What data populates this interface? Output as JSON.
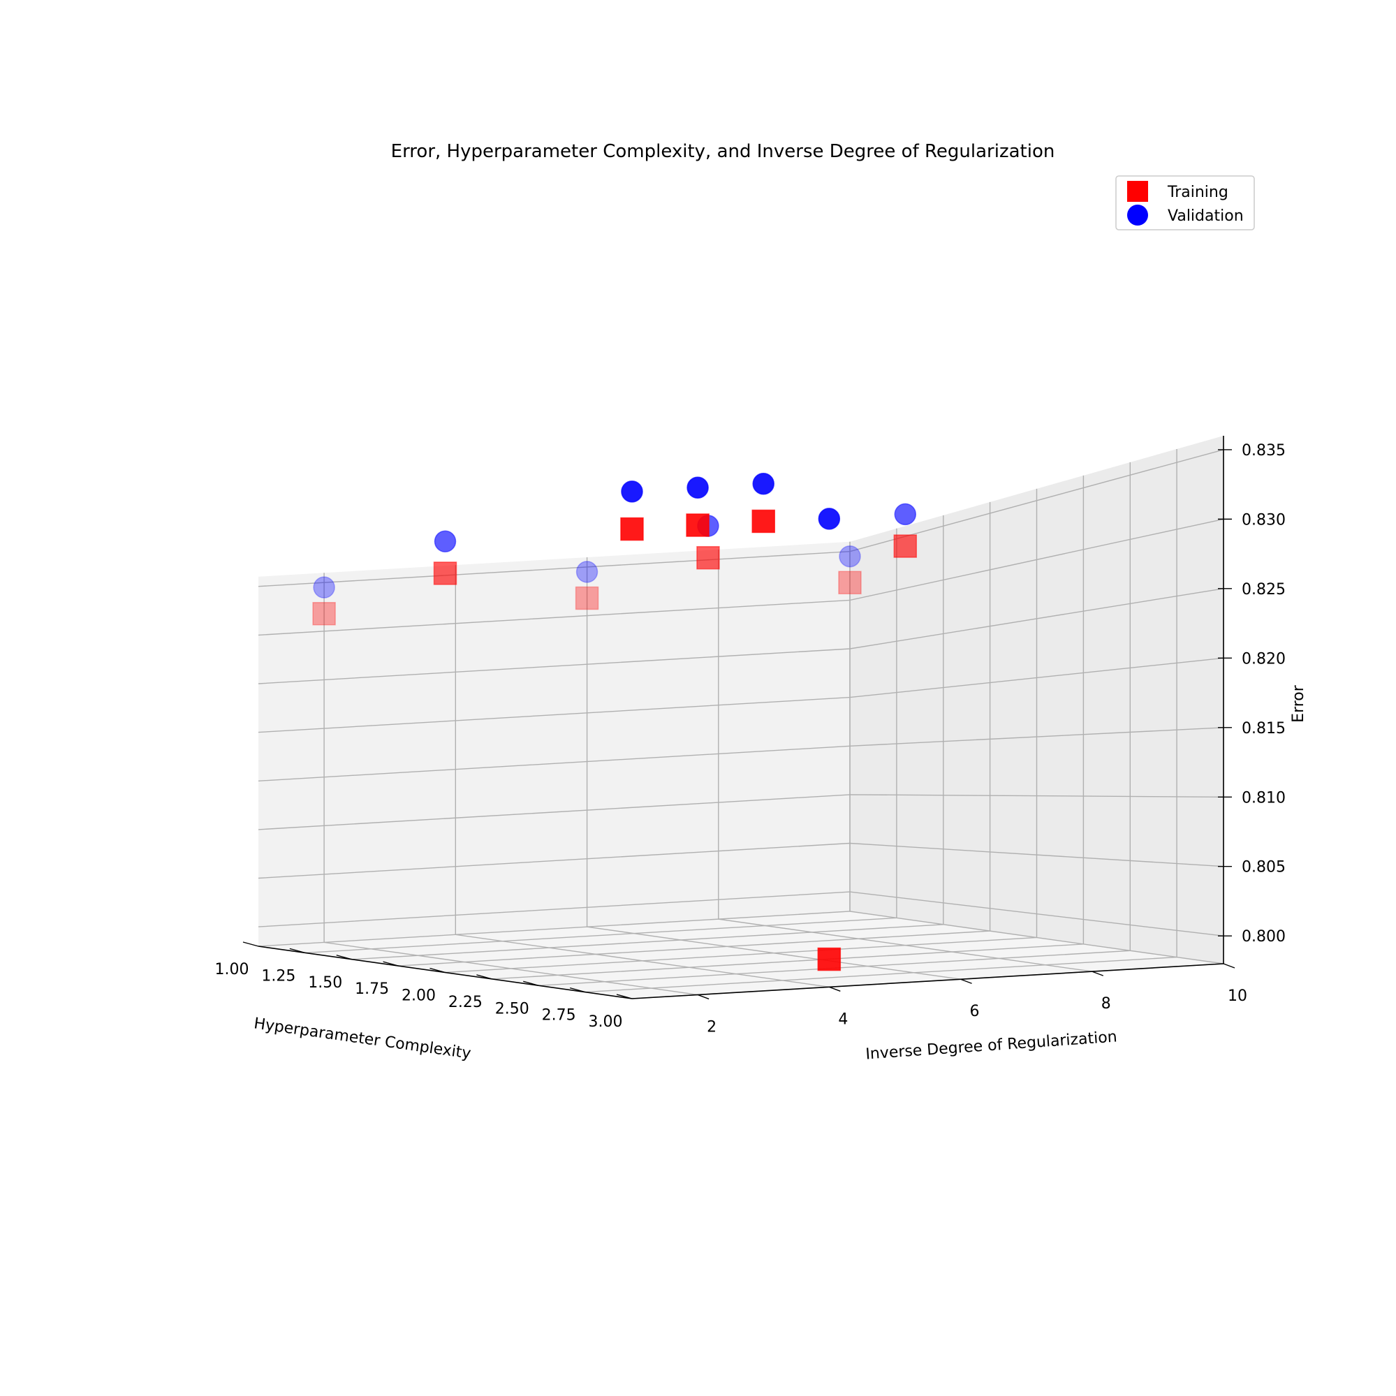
{
  "chart_data": {
    "type": "scatter3d",
    "title": "Error, Hyperparameter Complexity, and Inverse Degree of Regularization",
    "xlabel": "Hyperparameter Complexity",
    "ylabel": "Inverse Degree of Regularization",
    "zlabel": "Error",
    "x_ticks": [
      "1.00",
      "1.25",
      "1.50",
      "1.75",
      "2.00",
      "2.25",
      "2.50",
      "2.75",
      "3.00"
    ],
    "y_ticks": [
      "2",
      "4",
      "6",
      "8",
      "10"
    ],
    "z_ticks": [
      "0.800",
      "0.805",
      "0.810",
      "0.815",
      "0.820",
      "0.825",
      "0.830",
      "0.835"
    ],
    "xlim": [
      1,
      3
    ],
    "ylim": [
      1,
      10
    ],
    "zlim": [
      0.798,
      0.836
    ],
    "grid": true,
    "legend_position": "top-right",
    "series": [
      {
        "name": "Training",
        "marker": "square",
        "color": "#ff0000",
        "points": [
          {
            "x": 3,
            "y": 1,
            "z": 0.8318
          },
          {
            "x": 3,
            "y": 2,
            "z": 0.8318
          },
          {
            "x": 3,
            "y": 3,
            "z": 0.8318
          },
          {
            "x": 3,
            "y": 4,
            "z": 0.8
          },
          {
            "x": 2,
            "y": 1,
            "z": 0.8318
          },
          {
            "x": 2,
            "y": 5,
            "z": 0.8318
          },
          {
            "x": 2,
            "y": 8,
            "z": 0.8318
          },
          {
            "x": 1,
            "y": 2,
            "z": 0.8318
          },
          {
            "x": 1,
            "y": 6,
            "z": 0.8318
          },
          {
            "x": 1,
            "y": 10,
            "z": 0.8318
          }
        ]
      },
      {
        "name": "Validation",
        "marker": "circle",
        "color": "#0000ff",
        "points": [
          {
            "x": 3,
            "y": 1,
            "z": 0.8345
          },
          {
            "x": 3,
            "y": 2,
            "z": 0.8345
          },
          {
            "x": 3,
            "y": 3,
            "z": 0.8345
          },
          {
            "x": 3,
            "y": 4,
            "z": 0.8317
          },
          {
            "x": 2,
            "y": 1,
            "z": 0.8345
          },
          {
            "x": 2,
            "y": 5,
            "z": 0.8345
          },
          {
            "x": 2,
            "y": 8,
            "z": 0.8345
          },
          {
            "x": 1,
            "y": 2,
            "z": 0.8345
          },
          {
            "x": 1,
            "y": 6,
            "z": 0.8345
          },
          {
            "x": 1,
            "y": 10,
            "z": 0.8345
          }
        ]
      }
    ]
  }
}
